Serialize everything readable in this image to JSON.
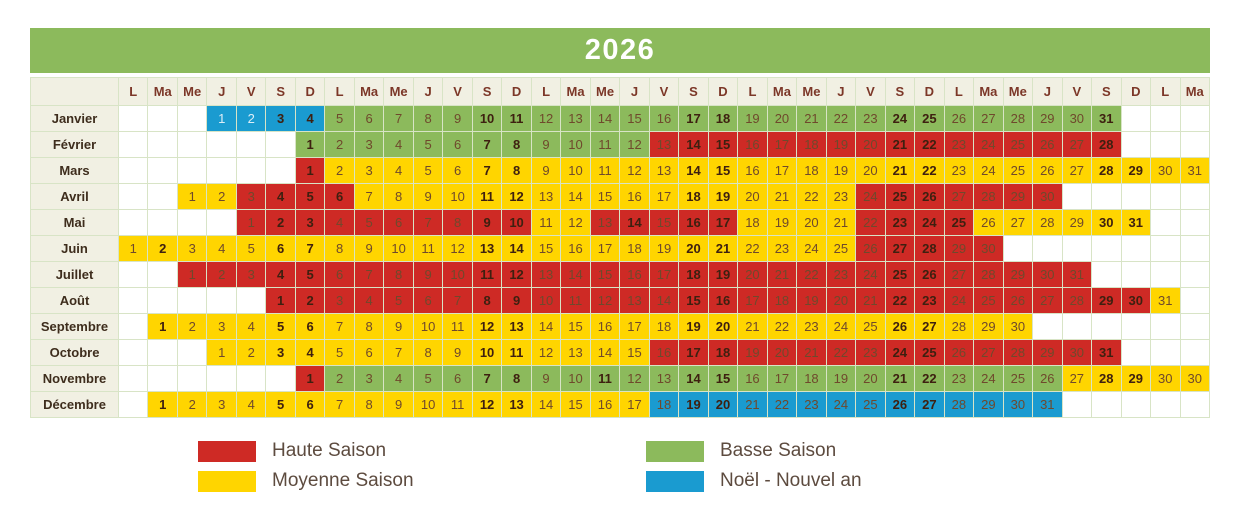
{
  "title": "2026",
  "day_headers": [
    "L",
    "Ma",
    "Me",
    "J",
    "V",
    "S",
    "D",
    "L",
    "Ma",
    "Me",
    "J",
    "V",
    "S",
    "D",
    "L",
    "Ma",
    "Me",
    "J",
    "V",
    "S",
    "D",
    "L",
    "Ma",
    "Me",
    "J",
    "V",
    "S",
    "D",
    "L",
    "Ma",
    "Me",
    "J",
    "V",
    "S",
    "D",
    "L",
    "Ma"
  ],
  "colors": {
    "haute": "#ce2a25",
    "moyenne": "#ffd500",
    "basse": "#8cba5c",
    "noel": "#1a9bd0",
    "label_bg": "#f1f0e3",
    "grid_line": "#d8e4c6",
    "text_normal": "#6f492c",
    "text_bold": "#3e2010",
    "header_text": "#7c3728",
    "legend_text": "#5d4b3f"
  },
  "chart_data": {
    "type": "heatmap",
    "title": "2026",
    "description": "Seasonal pricing calendar: one row per month, one column per day-of-week slot (L..D repeating), cell color = season",
    "months": [
      {
        "name": "Janvier",
        "offset": 3,
        "days": 31,
        "spans": [
          [
            1,
            4,
            "noel"
          ],
          [
            5,
            31,
            "basse"
          ]
        ],
        "bold": [
          3,
          4,
          10,
          11,
          17,
          18,
          24,
          25,
          31
        ],
        "light": [
          1,
          2
        ]
      },
      {
        "name": "Février",
        "offset": 6,
        "days": 28,
        "spans": [
          [
            1,
            12,
            "basse"
          ],
          [
            13,
            28,
            "haute"
          ]
        ],
        "bold": [
          1,
          7,
          8,
          14,
          15,
          21,
          22,
          28
        ]
      },
      {
        "name": "Mars",
        "offset": 6,
        "days": 31,
        "spans": [
          [
            1,
            1,
            "haute"
          ],
          [
            2,
            31,
            "moyenne"
          ]
        ],
        "bold": [
          1,
          7,
          8,
          14,
          15,
          21,
          22,
          28,
          29
        ]
      },
      {
        "name": "Avril",
        "offset": 2,
        "days": 30,
        "spans": [
          [
            1,
            2,
            "moyenne"
          ],
          [
            3,
            6,
            "haute"
          ],
          [
            7,
            23,
            "moyenne"
          ],
          [
            24,
            30,
            "haute"
          ]
        ],
        "bold": [
          4,
          5,
          6,
          11,
          12,
          18,
          19,
          25,
          26
        ]
      },
      {
        "name": "Mai",
        "offset": 4,
        "days": 31,
        "spans": [
          [
            1,
            10,
            "haute"
          ],
          [
            11,
            12,
            "moyenne"
          ],
          [
            13,
            17,
            "haute"
          ],
          [
            18,
            21,
            "moyenne"
          ],
          [
            22,
            25,
            "haute"
          ],
          [
            26,
            31,
            "moyenne"
          ]
        ],
        "bold": [
          2,
          3,
          9,
          10,
          14,
          16,
          17,
          23,
          24,
          25,
          30,
          31
        ]
      },
      {
        "name": "Juin",
        "offset": 0,
        "days": 30,
        "spans": [
          [
            1,
            25,
            "moyenne"
          ],
          [
            26,
            30,
            "haute"
          ]
        ],
        "bold": [
          2,
          6,
          7,
          13,
          14,
          20,
          21,
          27,
          28
        ]
      },
      {
        "name": "Juillet",
        "offset": 2,
        "days": 31,
        "spans": [
          [
            1,
            31,
            "haute"
          ]
        ],
        "bold": [
          4,
          5,
          11,
          12,
          18,
          19,
          25,
          26
        ]
      },
      {
        "name": "Août",
        "offset": 5,
        "days": 31,
        "spans": [
          [
            1,
            30,
            "haute"
          ],
          [
            31,
            31,
            "moyenne"
          ]
        ],
        "bold": [
          1,
          2,
          8,
          9,
          15,
          16,
          22,
          23,
          29,
          30
        ]
      },
      {
        "name": "Septembre",
        "offset": 1,
        "days": 30,
        "spans": [
          [
            1,
            30,
            "moyenne"
          ]
        ],
        "bold": [
          1,
          5,
          6,
          12,
          13,
          19,
          20,
          26,
          27
        ]
      },
      {
        "name": "Octobre",
        "offset": 3,
        "days": 31,
        "spans": [
          [
            1,
            15,
            "moyenne"
          ],
          [
            16,
            31,
            "haute"
          ]
        ],
        "bold": [
          3,
          4,
          10,
          11,
          17,
          18,
          24,
          25,
          31
        ]
      },
      {
        "name": "Novembre",
        "offset": 6,
        "days": 30,
        "spans": [
          [
            1,
            1,
            "haute"
          ],
          [
            2,
            26,
            "basse"
          ],
          [
            27,
            30,
            "moyenne"
          ]
        ],
        "bold": [
          1,
          7,
          8,
          11,
          14,
          15,
          21,
          22,
          28,
          29
        ],
        "extra": [
          {
            "label": "30",
            "season": "moyenne"
          }
        ]
      },
      {
        "name": "Décembre",
        "offset": 1,
        "days": 31,
        "spans": [
          [
            1,
            17,
            "moyenne"
          ],
          [
            18,
            31,
            "noel"
          ]
        ],
        "bold": [
          1,
          5,
          6,
          12,
          13,
          19,
          20,
          26,
          27
        ]
      }
    ],
    "legend": [
      {
        "label": "Haute Saison",
        "key": "haute"
      },
      {
        "label": "Moyenne Saison",
        "key": "moyenne"
      },
      {
        "label": "Basse Saison",
        "key": "basse"
      },
      {
        "label": "Noël - Nouvel an",
        "key": "noel"
      }
    ]
  }
}
